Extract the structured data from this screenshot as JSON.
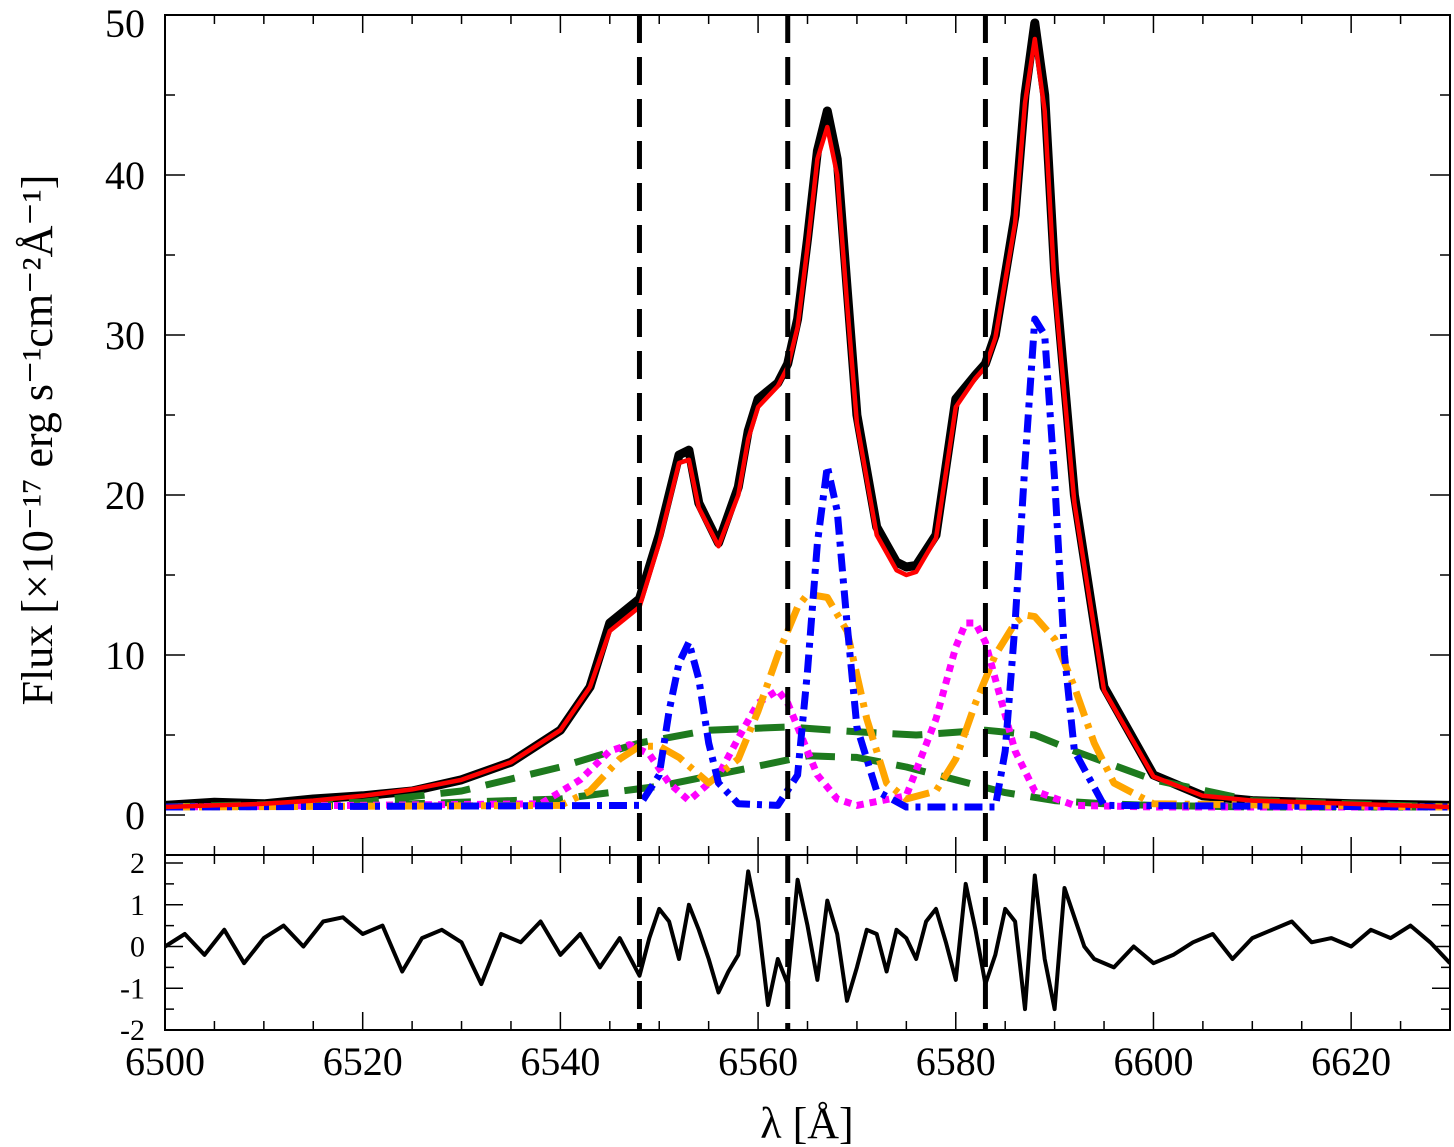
{
  "chart_data": [
    {
      "type": "line",
      "panel": "main",
      "xlabel": "λ [Å]",
      "ylabel": "Flux [×10⁻¹⁷ erg s⁻¹cm⁻²Å⁻¹]",
      "xlim": [
        6500,
        6630
      ],
      "ylim": [
        0,
        50
      ],
      "xticks": [
        6500,
        6520,
        6540,
        6560,
        6580,
        6600,
        6620
      ],
      "yticks": [
        0,
        10,
        20,
        30,
        40,
        50
      ],
      "grid": false,
      "legend": "none",
      "vlines": [
        6548,
        6563,
        6583
      ],
      "series": [
        {
          "role": "observed",
          "color": "#000000",
          "x": [
            6500,
            6505,
            6510,
            6515,
            6520,
            6525,
            6530,
            6535,
            6540,
            6543,
            6545,
            6548,
            6550,
            6552,
            6553,
            6554,
            6556,
            6558,
            6559,
            6560,
            6562,
            6563,
            6564,
            6565,
            6566,
            6567,
            6568,
            6569,
            6570,
            6572,
            6574,
            6575,
            6576,
            6578,
            6580,
            6582,
            6583,
            6584,
            6586,
            6587,
            6588,
            6589,
            6590,
            6592,
            6595,
            6600,
            6605,
            6610,
            6620,
            6630
          ],
          "y": [
            0.6,
            0.8,
            0.7,
            1.0,
            1.2,
            1.5,
            2.2,
            3.3,
            5.3,
            8.0,
            12.0,
            13.5,
            17.5,
            22.5,
            22.8,
            19.5,
            17.0,
            20.5,
            24.0,
            26.0,
            27.0,
            28.2,
            31.0,
            36.0,
            41.5,
            44.0,
            41.0,
            33.0,
            25.0,
            18.0,
            15.8,
            15.5,
            15.6,
            17.5,
            26.0,
            27.5,
            28.2,
            30.0,
            37.5,
            45.0,
            49.5,
            45.0,
            34.0,
            20.0,
            8.0,
            2.5,
            1.2,
            0.9,
            0.7,
            0.6
          ]
        },
        {
          "role": "total-fit",
          "color": "#ff0000",
          "x": [
            6500,
            6505,
            6510,
            6515,
            6520,
            6525,
            6530,
            6535,
            6540,
            6543,
            6545,
            6548,
            6550,
            6552,
            6553,
            6554,
            6556,
            6558,
            6559,
            6560,
            6562,
            6563,
            6564,
            6565,
            6566,
            6567,
            6568,
            6569,
            6570,
            6572,
            6574,
            6575,
            6576,
            6578,
            6580,
            6582,
            6583,
            6584,
            6586,
            6587,
            6588,
            6589,
            6590,
            6592,
            6595,
            6600,
            6605,
            6610,
            6620,
            6630
          ],
          "y": [
            0.5,
            0.6,
            0.7,
            0.9,
            1.2,
            1.6,
            2.2,
            3.3,
            5.3,
            8.0,
            11.5,
            13.0,
            17.0,
            22.0,
            22.2,
            19.2,
            16.8,
            20.0,
            23.5,
            25.5,
            26.8,
            28.0,
            30.5,
            35.5,
            41.0,
            43.0,
            40.0,
            32.0,
            24.5,
            17.5,
            15.3,
            15.0,
            15.2,
            17.3,
            25.5,
            27.3,
            28.0,
            29.8,
            37.0,
            44.5,
            48.5,
            44.0,
            33.0,
            19.5,
            7.8,
            2.4,
            1.2,
            0.9,
            0.7,
            0.5
          ]
        },
        {
          "role": "broad-component-1",
          "color": "#1e7a1e",
          "dash": "30 16",
          "x": [
            6500,
            6520,
            6530,
            6540,
            6548,
            6555,
            6563,
            6570,
            6576,
            6583,
            6588,
            6592,
            6600,
            6610,
            6630
          ],
          "y": [
            0.5,
            0.8,
            1.5,
            3.0,
            4.5,
            5.3,
            5.5,
            5.2,
            5.0,
            5.3,
            5.0,
            4.0,
            2.2,
            0.9,
            0.5
          ]
        },
        {
          "role": "broad-component-2",
          "color": "#1e7a1e",
          "dash": "30 16",
          "x": [
            6500,
            6520,
            6540,
            6550,
            6558,
            6565,
            6570,
            6575,
            6580,
            6585,
            6590,
            6595,
            6600,
            6610,
            6630
          ],
          "y": [
            0.5,
            0.6,
            1.0,
            1.8,
            2.8,
            3.7,
            3.6,
            3.0,
            2.2,
            1.4,
            0.9,
            0.7,
            0.6,
            0.5,
            0.5
          ]
        },
        {
          "role": "narrow-component-blue",
          "color": "#0000ff",
          "dash": "18 7 5 7",
          "x": [
            6500,
            6548,
            6550,
            6551,
            6552,
            6553,
            6554,
            6555,
            6556,
            6558,
            6562,
            6564,
            6565,
            6566,
            6567,
            6568,
            6569,
            6570,
            6572,
            6575,
            6584,
            6585,
            6586,
            6587,
            6588,
            6589,
            6590,
            6591,
            6592,
            6595,
            6630
          ],
          "y": [
            0.5,
            0.6,
            2.5,
            6.5,
            9.5,
            10.8,
            8.5,
            4.5,
            2.0,
            0.7,
            0.6,
            2.5,
            9.0,
            17.0,
            21.8,
            19.0,
            12.0,
            5.5,
            1.5,
            0.5,
            0.5,
            4.0,
            12.0,
            22.0,
            31.0,
            30.0,
            21.0,
            10.0,
            4.0,
            0.6,
            0.5
          ]
        },
        {
          "role": "narrow-component-magenta",
          "color": "#ff00ff",
          "dash": "7 6",
          "x": [
            6500,
            6538,
            6542,
            6545,
            6547,
            6549,
            6551,
            6553,
            6556,
            6558,
            6560,
            6562,
            6563,
            6564,
            6566,
            6568,
            6570,
            6575,
            6578,
            6580,
            6581,
            6582,
            6583,
            6584,
            6586,
            6588,
            6592,
            6600,
            6630
          ],
          "y": [
            0.5,
            0.7,
            2.2,
            4.0,
            4.4,
            3.8,
            2.0,
            0.9,
            2.5,
            4.8,
            7.0,
            7.8,
            7.0,
            5.5,
            2.5,
            1.0,
            0.6,
            1.2,
            6.0,
            10.5,
            12.0,
            12.0,
            10.8,
            8.5,
            4.0,
            1.5,
            0.6,
            0.5,
            0.5
          ]
        },
        {
          "role": "intermediate-component-orange",
          "color": "#ffa500",
          "dash": "26 8 5 8",
          "x": [
            6500,
            6540,
            6543,
            6546,
            6548,
            6550,
            6552,
            6555,
            6558,
            6560,
            6562,
            6564,
            6565,
            6567,
            6569,
            6571,
            6573,
            6575,
            6578,
            6580,
            6582,
            6584,
            6586,
            6587,
            6588,
            6590,
            6592,
            6594,
            6596,
            6600,
            6630
          ],
          "y": [
            0.5,
            0.6,
            1.5,
            3.5,
            4.3,
            4.3,
            3.6,
            2.0,
            3.5,
            6.5,
            10.0,
            13.0,
            13.8,
            13.6,
            11.5,
            6.0,
            2.0,
            1.0,
            1.5,
            3.5,
            7.0,
            10.0,
            12.0,
            12.5,
            12.4,
            11.0,
            8.0,
            4.5,
            2.0,
            0.7,
            0.5
          ]
        }
      ]
    },
    {
      "type": "line",
      "panel": "residual",
      "xlim": [
        6500,
        6630
      ],
      "ylim": [
        -2,
        2
      ],
      "yticks": [
        -2,
        -1,
        0,
        1,
        2
      ],
      "ytick_labels": [
        "-2",
        "-1",
        "0",
        "1",
        "2"
      ],
      "vlines": [
        6548,
        6563,
        6583
      ],
      "series": [
        {
          "role": "residual",
          "color": "#000000",
          "x": [
            6500,
            6502,
            6504,
            6506,
            6508,
            6510,
            6512,
            6514,
            6516,
            6518,
            6520,
            6522,
            6524,
            6526,
            6528,
            6530,
            6532,
            6534,
            6536,
            6538,
            6540,
            6542,
            6544,
            6546,
            6548,
            6549,
            6550,
            6551,
            6552,
            6553,
            6554,
            6555,
            6556,
            6557,
            6558,
            6559,
            6560,
            6561,
            6562,
            6563,
            6564,
            6565,
            6566,
            6567,
            6568,
            6569,
            6570,
            6571,
            6572,
            6573,
            6574,
            6575,
            6576,
            6577,
            6578,
            6579,
            6580,
            6581,
            6582,
            6583,
            6584,
            6585,
            6586,
            6587,
            6588,
            6589,
            6590,
            6591,
            6592,
            6593,
            6594,
            6596,
            6598,
            6600,
            6602,
            6604,
            6606,
            6608,
            6610,
            6612,
            6614,
            6616,
            6618,
            6620,
            6622,
            6624,
            6626,
            6628,
            6630
          ],
          "y": [
            0.0,
            0.3,
            -0.2,
            0.4,
            -0.4,
            0.2,
            0.5,
            0.0,
            0.6,
            0.7,
            0.3,
            0.5,
            -0.6,
            0.2,
            0.4,
            0.1,
            -0.9,
            0.3,
            0.1,
            0.6,
            -0.2,
            0.3,
            -0.5,
            0.2,
            -0.7,
            0.2,
            0.9,
            0.6,
            -0.3,
            1.0,
            0.4,
            -0.3,
            -1.1,
            -0.6,
            -0.2,
            1.8,
            0.6,
            -1.4,
            -0.3,
            -0.9,
            1.6,
            0.5,
            -0.8,
            1.1,
            0.3,
            -1.3,
            -0.5,
            0.4,
            0.3,
            -0.6,
            0.4,
            0.2,
            -0.3,
            0.6,
            0.9,
            0.1,
            -0.8,
            1.5,
            0.4,
            -0.9,
            -0.2,
            0.9,
            0.6,
            -1.5,
            1.7,
            -0.3,
            -1.5,
            1.4,
            0.7,
            0.0,
            -0.3,
            -0.5,
            0.0,
            -0.4,
            -0.2,
            0.1,
            0.3,
            -0.3,
            0.2,
            0.4,
            0.6,
            0.1,
            0.2,
            0.0,
            0.4,
            0.2,
            0.5,
            0.1,
            -0.4
          ]
        }
      ]
    }
  ]
}
